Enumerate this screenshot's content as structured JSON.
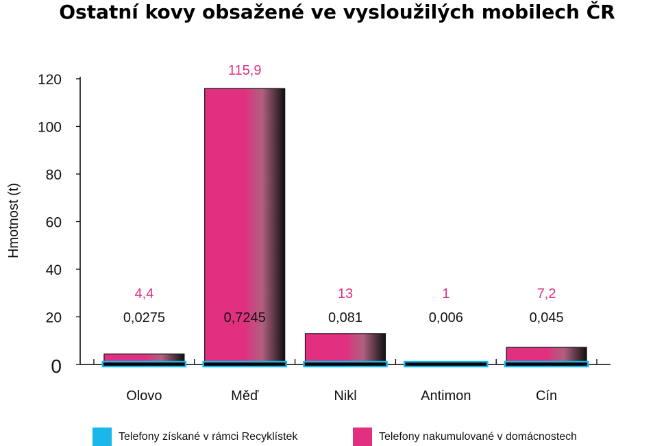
{
  "chart_data": {
    "type": "bar",
    "title": "Ostatní kovy obsažené ve vysloužilých mobilech ČR",
    "ylabel": "Hmotnost (t)",
    "xlabel": "",
    "ylim": [
      0,
      120
    ],
    "yticks": [
      "0",
      "20",
      "40",
      "60",
      "80",
      "100",
      "120"
    ],
    "categories": [
      "Olovo",
      "Měď",
      "Nikl",
      "Antimon",
      "Cín"
    ],
    "series": [
      {
        "name": "Telefony získané v rámci Recyklístek",
        "values": [
          0.0275,
          0.7245,
          0.081,
          0.006,
          0.045
        ],
        "labels": [
          "0,0275",
          "0,7245",
          "0,081",
          "0,006",
          "0,045"
        ],
        "color": "#1ab7ea"
      },
      {
        "name": "Telefony nakumulované v domácnostech",
        "values": [
          4.4,
          115.9,
          13,
          1,
          7.2
        ],
        "labels": [
          "4,4",
          "115,9",
          "13",
          "1",
          "7,2"
        ],
        "color": "#e0307f"
      }
    ],
    "legend_position": "bottom",
    "grid": false
  }
}
